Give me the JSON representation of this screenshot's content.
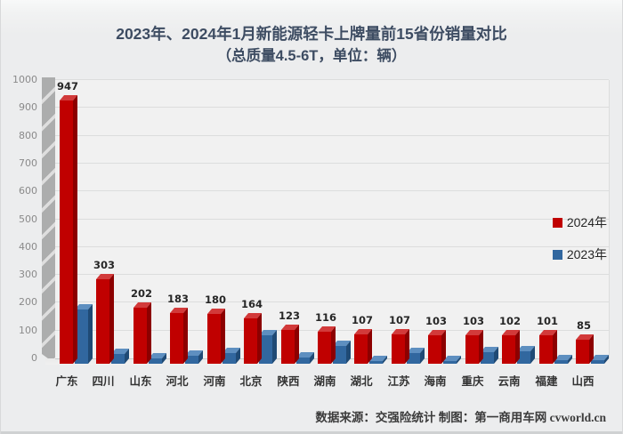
{
  "header": {
    "title_line1": "2023年、2024年1月新能源轻卡上牌量前15省份销量对比",
    "title_line2": "（总质量4.5-6T，单位：辆）"
  },
  "footer": {
    "source_note": "数据来源：交强险统计 制图：第一商用车网 cvworld.cn"
  },
  "chart_data": {
    "type": "bar",
    "title": "2023年、2024年1月新能源轻卡上牌量前15省份销量对比",
    "subtitle": "（总质量4.5-6T，单位：辆）",
    "categories": [
      "广东",
      "四川",
      "山东",
      "河北",
      "河南",
      "北京",
      "陕西",
      "湖南",
      "湖北",
      "江苏",
      "海南",
      "重庆",
      "云南",
      "福建",
      "山西"
    ],
    "series": [
      {
        "name": "2024年",
        "color": "#c00000",
        "color_top": "#d23a3a",
        "color_side": "#8c0000",
        "values": [
          947,
          303,
          202,
          183,
          180,
          164,
          123,
          116,
          107,
          107,
          103,
          103,
          102,
          101,
          85
        ],
        "data_labels": true
      },
      {
        "name": "2023年",
        "color": "#31679f",
        "color_top": "#5e8fc0",
        "color_side": "#1f4a75",
        "values": [
          195,
          35,
          20,
          28,
          37,
          103,
          21,
          64,
          10,
          37,
          10,
          42,
          44,
          13,
          14
        ],
        "data_labels": false
      }
    ],
    "ylim": [
      0,
      1000
    ],
    "ytick_interval": 100,
    "grid": true,
    "style": "3d-column",
    "legend_position": "right-inside"
  }
}
